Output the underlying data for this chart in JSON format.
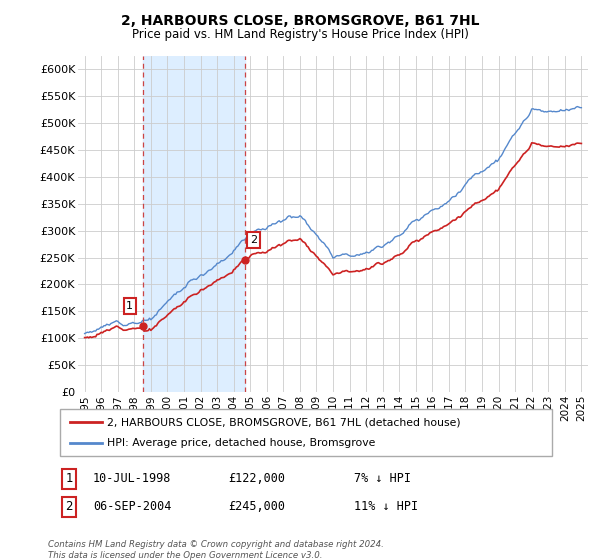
{
  "title": "2, HARBOURS CLOSE, BROMSGROVE, B61 7HL",
  "subtitle": "Price paid vs. HM Land Registry's House Price Index (HPI)",
  "legend_line1": "2, HARBOURS CLOSE, BROMSGROVE, B61 7HL (detached house)",
  "legend_line2": "HPI: Average price, detached house, Bromsgrove",
  "sale1_label": "1",
  "sale1_date": "10-JUL-1998",
  "sale1_price": 122000,
  "sale1_pct": "7% ↓ HPI",
  "sale1_year": 1998.53,
  "sale2_label": "2",
  "sale2_date": "06-SEP-2004",
  "sale2_price": 245000,
  "sale2_pct": "11% ↓ HPI",
  "sale2_year": 2004.69,
  "ylabel_ticks": [
    "£0",
    "£50K",
    "£100K",
    "£150K",
    "£200K",
    "£250K",
    "£300K",
    "£350K",
    "£400K",
    "£450K",
    "£500K",
    "£550K",
    "£600K"
  ],
  "ytick_values": [
    0,
    50000,
    100000,
    150000,
    200000,
    250000,
    300000,
    350000,
    400000,
    450000,
    500000,
    550000,
    600000
  ],
  "hpi_color": "#5588cc",
  "price_color": "#cc2222",
  "marker_color": "#cc2222",
  "vline_color": "#cc4444",
  "label_box_color": "#cc2222",
  "shade_color": "#ddeeff",
  "background_color": "#ffffff",
  "grid_color": "#cccccc",
  "footer": "Contains HM Land Registry data © Crown copyright and database right 2024.\nThis data is licensed under the Open Government Licence v3.0."
}
